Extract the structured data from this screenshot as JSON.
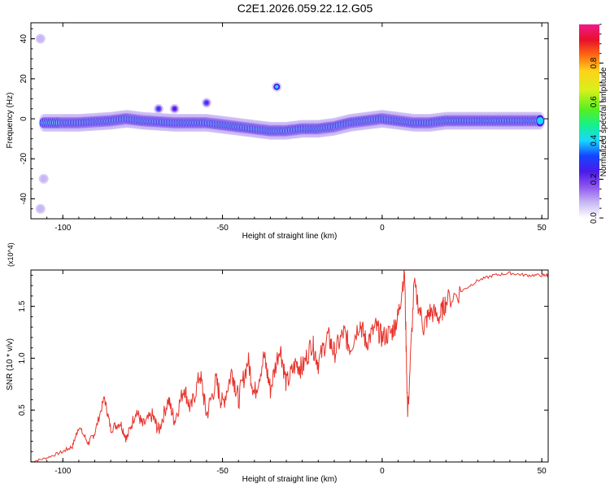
{
  "title": "C2E1.2026.059.22.12.G05",
  "colors": {
    "snr_line": "#e8332b",
    "colormap": [
      "#ffffff",
      "#c8b7f3",
      "#8f56f0",
      "#4a1be8",
      "#1444ff",
      "#17d8ff",
      "#17f08c",
      "#54f01e",
      "#d8f01a",
      "#ffd11a",
      "#ff6a12",
      "#e8102a",
      "#f01a8c"
    ]
  },
  "chart_data": [
    {
      "type": "heatmap",
      "title": "C2E1.2026.059.22.12.G05",
      "xlabel": "Height of straight line (km)",
      "ylabel": "Frequency (Hz)",
      "xlim": [
        -110,
        52
      ],
      "ylim": [
        -50,
        48
      ],
      "xticks": [
        -100,
        -50,
        0,
        50
      ],
      "xtick_labels": [
        "-100",
        "-50",
        "0",
        "50"
      ],
      "yticks": [
        -40,
        -20,
        0,
        20,
        40
      ],
      "ytick_labels": [
        "-40",
        "-20",
        "0",
        "20",
        "40"
      ],
      "colorbar": {
        "label": "Normalized spectral amplitude",
        "range": [
          0,
          1
        ],
        "ticks": [
          0.0,
          0.2,
          0.4,
          0.6,
          0.8
        ],
        "tick_labels": [
          "0.0",
          "0.2",
          "0.4",
          "0.6",
          "0.8"
        ]
      },
      "ridge": [
        {
          "x": -106,
          "y": -2,
          "v": 0.45
        },
        {
          "x": -100,
          "y": -2,
          "v": 0.75
        },
        {
          "x": -95,
          "y": -2,
          "v": 0.6
        },
        {
          "x": -90,
          "y": -1.5,
          "v": 0.5
        },
        {
          "x": -85,
          "y": -1,
          "v": 0.55
        },
        {
          "x": -80,
          "y": 0,
          "v": 0.8
        },
        {
          "x": -75,
          "y": -1,
          "v": 0.45
        },
        {
          "x": -70,
          "y": -1.5,
          "v": 0.5
        },
        {
          "x": -65,
          "y": -2,
          "v": 0.4
        },
        {
          "x": -60,
          "y": -2,
          "v": 0.45
        },
        {
          "x": -55,
          "y": -2,
          "v": 0.4
        },
        {
          "x": -50,
          "y": -3,
          "v": 0.5
        },
        {
          "x": -45,
          "y": -4,
          "v": 0.55
        },
        {
          "x": -40,
          "y": -5,
          "v": 0.6
        },
        {
          "x": -35,
          "y": -6,
          "v": 0.65
        },
        {
          "x": -30,
          "y": -6,
          "v": 0.6
        },
        {
          "x": -25,
          "y": -5,
          "v": 0.65
        },
        {
          "x": -20,
          "y": -5,
          "v": 0.9
        },
        {
          "x": -15,
          "y": -4,
          "v": 0.7
        },
        {
          "x": -10,
          "y": -2,
          "v": 0.9
        },
        {
          "x": -5,
          "y": -1,
          "v": 0.6
        },
        {
          "x": 0,
          "y": 0,
          "v": 0.95
        },
        {
          "x": 5,
          "y": -1,
          "v": 0.7
        },
        {
          "x": 10,
          "y": -2,
          "v": 0.9
        },
        {
          "x": 15,
          "y": -2,
          "v": 0.8
        },
        {
          "x": 20,
          "y": -1,
          "v": 0.7
        },
        {
          "x": 25,
          "y": -1,
          "v": 0.5
        },
        {
          "x": 30,
          "y": -1,
          "v": 0.5
        },
        {
          "x": 35,
          "y": -1,
          "v": 0.45
        },
        {
          "x": 40,
          "y": -1,
          "v": 0.45
        },
        {
          "x": 45,
          "y": -1,
          "v": 0.45
        },
        {
          "x": 50,
          "y": -1,
          "v": 0.45
        }
      ],
      "blobs": [
        {
          "x": -33,
          "y": 16,
          "v": 0.4
        },
        {
          "x": -55,
          "y": 8,
          "v": 0.3
        },
        {
          "x": -70,
          "y": 5,
          "v": 0.3
        },
        {
          "x": -65,
          "y": 5,
          "v": 0.25
        },
        {
          "x": -107,
          "y": 40,
          "v": 0.1
        },
        {
          "x": -106,
          "y": -30,
          "v": 0.1
        },
        {
          "x": -107,
          "y": -45,
          "v": 0.1
        }
      ]
    },
    {
      "type": "line",
      "title": "",
      "xlabel": "Height of straight line (km)",
      "ylabel": "SNR (10 * v/v)",
      "y_multiplier": "(x10^4)",
      "xlim": [
        -110,
        52
      ],
      "ylim": [
        0,
        1.85
      ],
      "xticks": [
        -100,
        -50,
        0,
        50
      ],
      "xtick_labels": [
        "-100",
        "-50",
        "0",
        "50"
      ],
      "yticks": [
        0.5,
        1.0,
        1.5
      ],
      "ytick_labels": [
        "0.5",
        "1.0",
        "1.5"
      ],
      "x": [
        -110,
        -105,
        -100,
        -97,
        -95,
        -92,
        -90,
        -87,
        -85,
        -82,
        -80,
        -77,
        -75,
        -72,
        -70,
        -67,
        -65,
        -62,
        -60,
        -57,
        -55,
        -52,
        -50,
        -47,
        -45,
        -42,
        -40,
        -37,
        -35,
        -32,
        -30,
        -27,
        -25,
        -22,
        -20,
        -17,
        -15,
        -12,
        -10,
        -7,
        -5,
        -2,
        0,
        3,
        5,
        7,
        8,
        10,
        13,
        15,
        18,
        20,
        25,
        30,
        35,
        40,
        45,
        50,
        52
      ],
      "y": [
        0.0,
        0.04,
        0.1,
        0.15,
        0.34,
        0.18,
        0.28,
        0.62,
        0.32,
        0.38,
        0.22,
        0.5,
        0.35,
        0.45,
        0.3,
        0.6,
        0.4,
        0.72,
        0.5,
        0.85,
        0.45,
        0.78,
        0.55,
        0.88,
        0.6,
        0.98,
        0.65,
        1.02,
        0.7,
        1.12,
        0.75,
        0.95,
        0.9,
        1.15,
        0.95,
        1.22,
        1.05,
        1.25,
        1.1,
        1.35,
        1.15,
        1.3,
        1.2,
        1.25,
        1.4,
        1.85,
        0.45,
        1.7,
        1.3,
        1.45,
        1.4,
        1.55,
        1.65,
        1.75,
        1.8,
        1.82,
        1.8,
        1.8,
        1.8
      ]
    }
  ]
}
